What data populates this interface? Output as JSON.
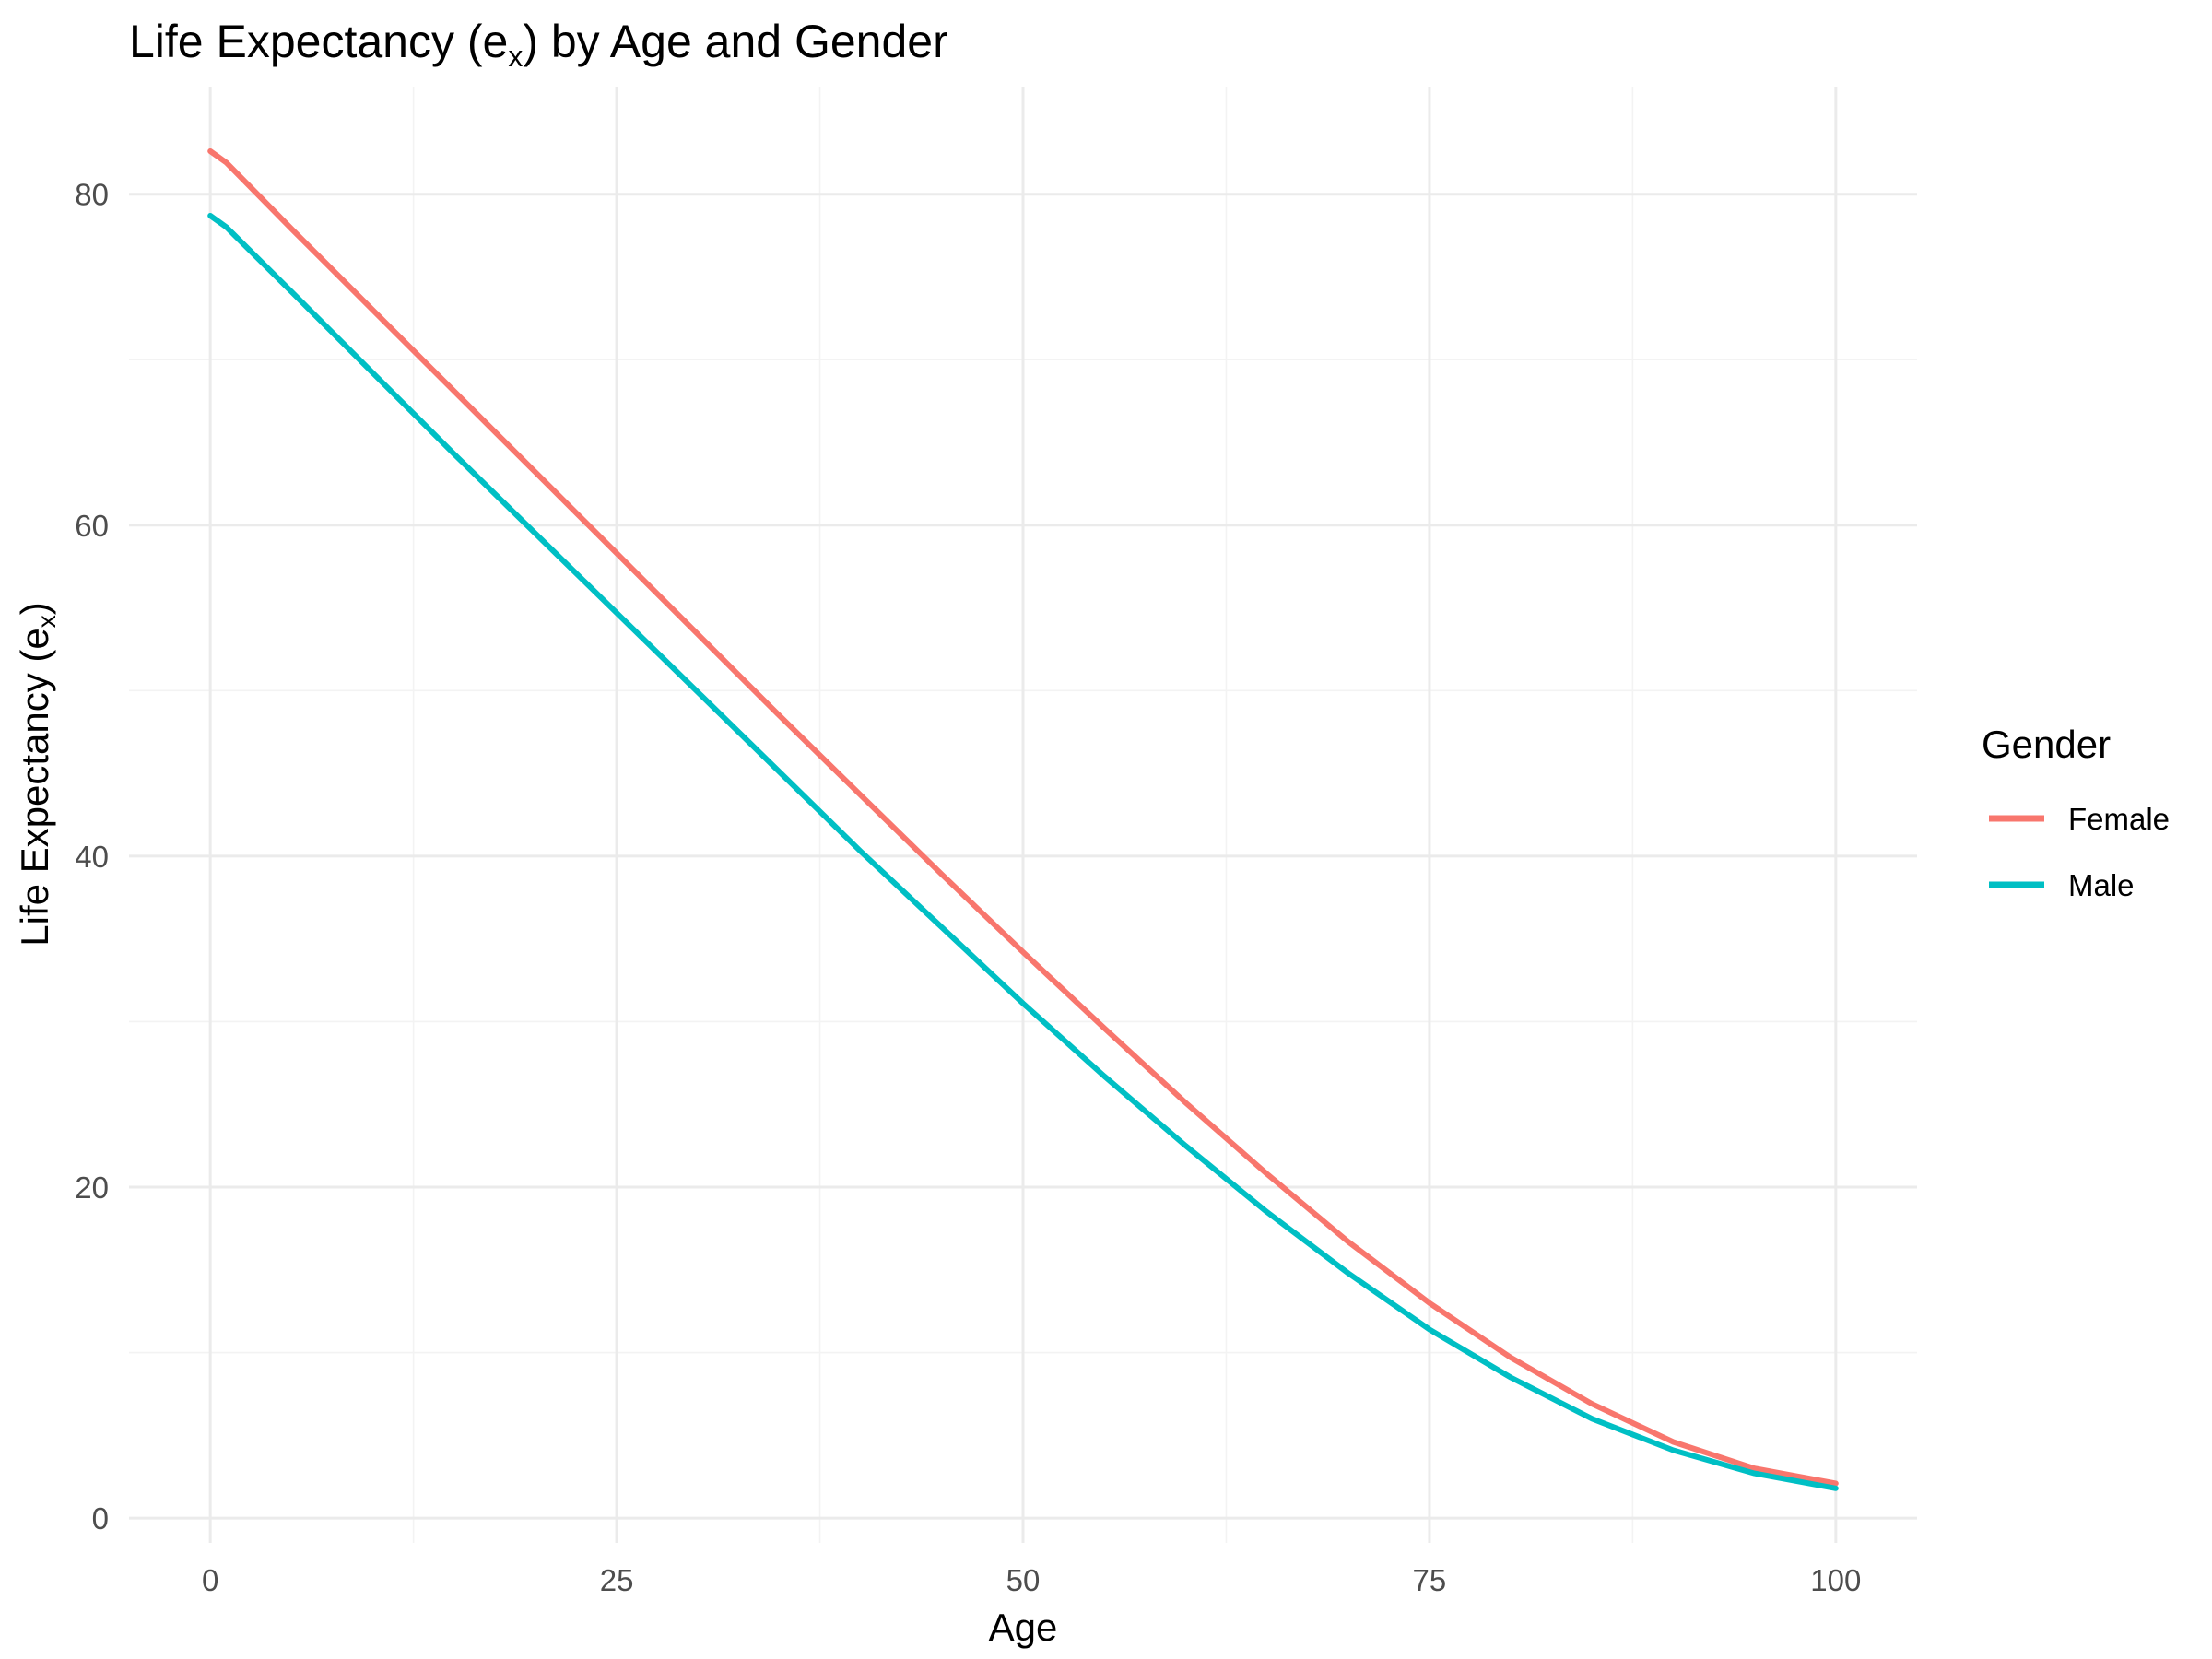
{
  "chart_data": {
    "type": "line",
    "title": {
      "prefix": "Life Expectancy (e",
      "subscript": "x",
      "suffix": ") by Age and Gender"
    },
    "xlabel": "Age",
    "ylabel": {
      "prefix": "Life Expectancy (e",
      "subscript": "x",
      "suffix": ")"
    },
    "xlim": [
      -5,
      105
    ],
    "ylim": [
      -1.5,
      86.5
    ],
    "x_ticks": [
      0,
      25,
      50,
      75,
      100
    ],
    "x_tick_labels": [
      "0",
      "25",
      "50",
      "75",
      "100"
    ],
    "x_minor_ticks": [
      12.5,
      37.5,
      62.5,
      87.5
    ],
    "y_ticks": [
      0,
      20,
      40,
      60,
      80
    ],
    "y_tick_labels": [
      "0",
      "20",
      "40",
      "60",
      "80"
    ],
    "y_minor_ticks": [
      10,
      30,
      50,
      70
    ],
    "grid": true,
    "legend": {
      "title": "Gender",
      "position": "right"
    },
    "x": [
      0,
      1,
      5,
      10,
      15,
      20,
      25,
      30,
      35,
      40,
      45,
      50,
      55,
      60,
      65,
      70,
      75,
      80,
      85,
      90,
      95,
      100
    ],
    "series": [
      {
        "name": "Female",
        "color": "#F8766D",
        "values": [
          82.6,
          81.9,
          77.9,
          73.0,
          68.1,
          63.2,
          58.3,
          53.4,
          48.5,
          43.7,
          38.9,
          34.2,
          29.6,
          25.1,
          20.8,
          16.7,
          13.0,
          9.7,
          6.9,
          4.6,
          3.0,
          2.1
        ]
      },
      {
        "name": "Male",
        "color": "#00BFC4",
        "values": [
          78.7,
          78.0,
          74.1,
          69.2,
          64.3,
          59.5,
          54.7,
          49.9,
          45.1,
          40.3,
          35.7,
          31.1,
          26.7,
          22.5,
          18.5,
          14.8,
          11.4,
          8.5,
          6.0,
          4.1,
          2.7,
          1.8
        ]
      }
    ]
  }
}
